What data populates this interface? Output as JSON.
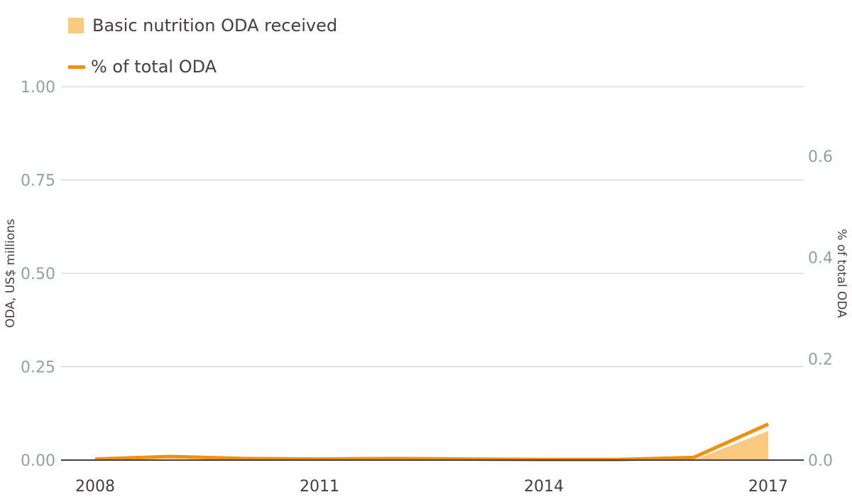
{
  "legend": {
    "area_label": "Basic nutrition ODA received",
    "line_label": "% of total ODA"
  },
  "colors": {
    "area_fill": "#fbc97f",
    "line": "#f0900f",
    "grid": "#c9ced0",
    "baseline": "#443e42",
    "tick_text": "#8fa39b",
    "axis_text": "#443e42"
  },
  "chart_data": {
    "type": "area",
    "x": [
      2008,
      2009,
      2010,
      2011,
      2012,
      2013,
      2014,
      2015,
      2016,
      2017
    ],
    "x_tick_labels": [
      "2008",
      "2011",
      "2014",
      "2017"
    ],
    "series": [
      {
        "name": "Basic nutrition ODA received",
        "type": "area",
        "axis": "left",
        "values": [
          0.0,
          0.0,
          0.0,
          0.0,
          0.0,
          0.0,
          0.0,
          0.0,
          0.0,
          0.078
        ]
      },
      {
        "name": "% of total ODA",
        "type": "line",
        "axis": "right",
        "values": [
          0.002,
          0.007,
          0.003,
          0.002,
          0.003,
          0.002,
          0.001,
          0.001,
          0.005,
          0.071
        ]
      }
    ],
    "left_axis": {
      "label": "ODA, US$ millions",
      "ylim": [
        0,
        1.0
      ],
      "ticks": [
        0,
        0.25,
        0.5,
        0.75,
        1.0
      ],
      "tick_labels": [
        "0.00",
        "0.25",
        "0.50",
        "0.75",
        "1.00"
      ]
    },
    "right_axis": {
      "label": "% of total ODA",
      "ylim": [
        0,
        0.7374
      ],
      "ticks": [
        0,
        0.2,
        0.4,
        0.6
      ],
      "tick_labels": [
        "0.0",
        "0.2",
        "0.4",
        "0.6"
      ]
    },
    "grid": true,
    "legend_position": "top-left"
  }
}
